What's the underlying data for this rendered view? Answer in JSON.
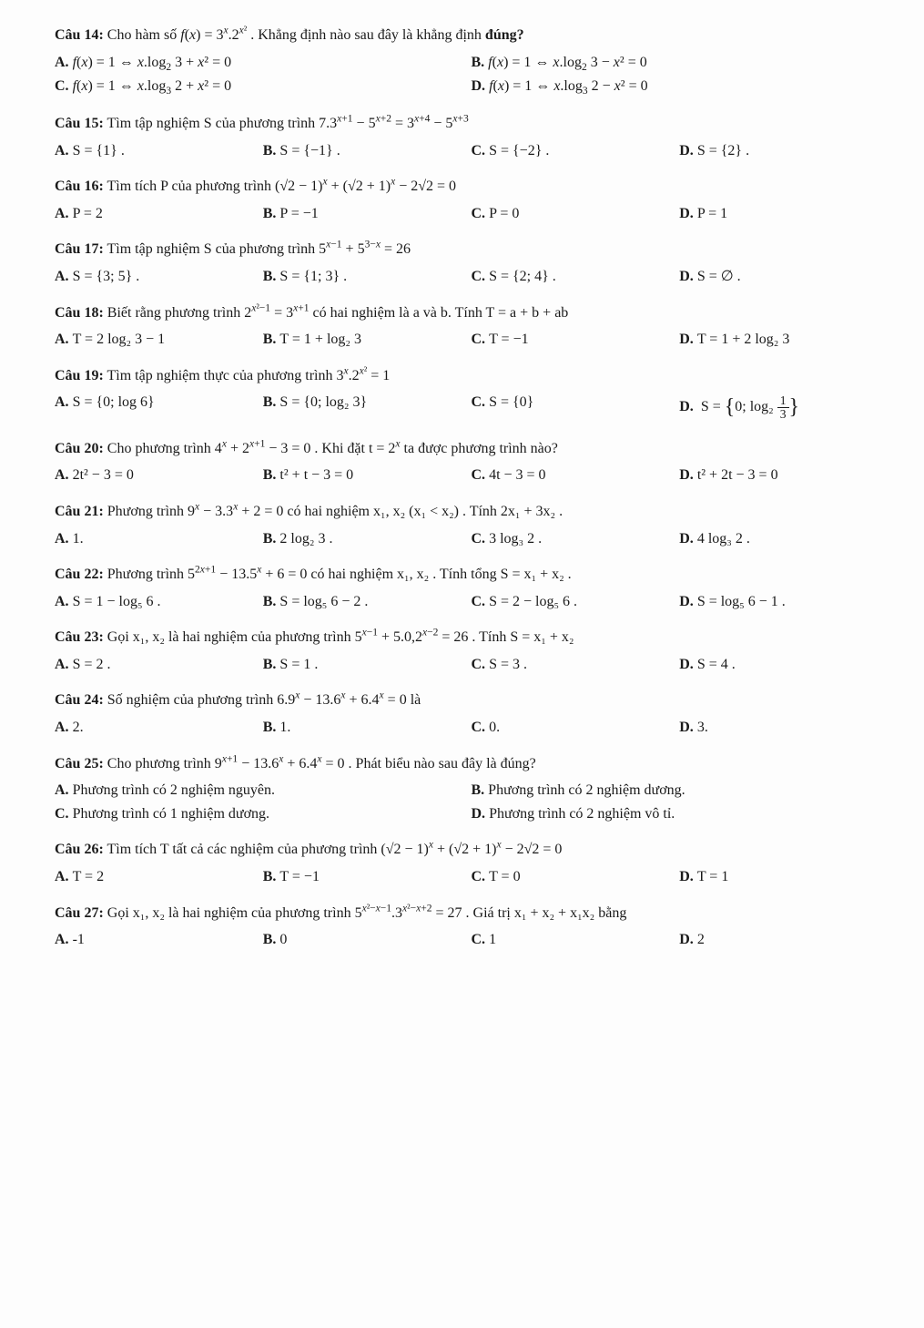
{
  "q14": {
    "num": "Câu 14:",
    "stem_before": " Cho hàm số ",
    "stem_fx": "f(x) = 3",
    "stem_mid": " . Khẳng định nào sau đây là khẳng định ",
    "stem_bold": "đúng?",
    "A": "f(x) = 1 ⇔ x.log₂ 3 + x² = 0",
    "B": "f(x) = 1 ⇔ x.log₂ 3 − x² = 0",
    "C": "f(x) = 1 ⇔ x.log₃ 2 + x² = 0",
    "D": "f(x) = 1 ⇔ x.log₃ 2 − x² = 0"
  },
  "q15": {
    "num": "Câu 15:",
    "stem": " Tìm tập nghiệm S của phương trình  7.3",
    "A": "S = {1} .",
    "B": "S = {−1} .",
    "C": "S = {−2} .",
    "D": "S = {2} ."
  },
  "q16": {
    "num": "Câu 16:",
    "stem": " Tìm tích P của phương trình  (√2 − 1)",
    "stem_tail": " − 2√2 = 0",
    "A": "P = 2",
    "B": "P = −1",
    "C": "P = 0",
    "D": "P = 1"
  },
  "q17": {
    "num": "Câu 17:",
    "stem": " Tìm tập nghiệm S của phương trình  5",
    "stem_tail": " = 26",
    "A": "S = {3; 5} .",
    "B": "S = {1; 3} .",
    "C": "S = {2; 4} .",
    "D": "S = ∅ ."
  },
  "q18": {
    "num": "Câu 18:",
    "stem": " Biết rằng phương trình  2",
    "stem_mid": " = 3",
    "stem_tail": "  có hai nghiệm là a và b. Tính  T = a + b + ab",
    "A": "T = 2 log₂ 3 − 1",
    "B": "T = 1 + log₂ 3",
    "C": "T = −1",
    "D": "T = 1 + 2 log₂ 3"
  },
  "q19": {
    "num": "Câu 19:",
    "stem": " Tìm tập nghiệm thực của phương trình  3",
    "stem_tail": " = 1",
    "A": "S = {0; log 6}",
    "B": "S = {0; log₂ 3}",
    "C": "S = {0}",
    "D_pre": "S = ",
    "D_inside_a": "0; log₂ ",
    "D_frac_n": "1",
    "D_frac_d": "3"
  },
  "q20": {
    "num": "Câu 20:",
    "stem": " Cho phương trình  4",
    "stem_mid": " + 2",
    "stem_tail": " − 3 = 0 . Khi đặt  t = 2",
    "stem_tail2": "  ta được phương trình nào?",
    "A": "2t² − 3 = 0",
    "B": "t² + t − 3 = 0",
    "C": "4t − 3 = 0",
    "D": "t² + 2t − 3 = 0"
  },
  "q21": {
    "num": "Câu 21:",
    "stem": " Phương trình  9",
    "stem_mid": " − 3.3",
    "stem_tail": " + 2 = 0  có hai nghiệm  x₁, x₂  (x₁ < x₂) . Tính  2x₁ + 3x₂ .",
    "A": "1.",
    "B": "2 log₂ 3 .",
    "C": "3 log₃ 2 .",
    "D": "4 log₃ 2 ."
  },
  "q22": {
    "num": "Câu 22:",
    "stem": " Phương trình  5",
    "stem_mid": " − 13.5",
    "stem_tail": " + 6 = 0  có hai nghiệm  x₁, x₂ . Tính tổng  S = x₁ + x₂ .",
    "A": "S = 1 − log₅ 6 .",
    "B": "S = log₅ 6 − 2 .",
    "C": "S = 2 − log₅ 6 .",
    "D": "S = log₅ 6 − 1 ."
  },
  "q23": {
    "num": "Câu 23:",
    "stem": " Gọi  x₁, x₂  là hai nghiệm của phương trình  5",
    "stem_mid": " + 5.0,2",
    "stem_tail": " = 26 . Tính  S = x₁ + x₂",
    "A": "S = 2 .",
    "B": "S = 1 .",
    "C": "S = 3 .",
    "D": "S = 4 ."
  },
  "q24": {
    "num": "Câu 24:",
    "stem": " Số nghiệm của phương trình  6.9",
    "stem_mid1": " − 13.6",
    "stem_mid2": " + 6.4",
    "stem_tail": " = 0  là",
    "A": "2.",
    "B": "1.",
    "C": "0.",
    "D": "3."
  },
  "q25": {
    "num": "Câu 25:",
    "stem": " Cho phương trình  9",
    "stem_mid1": " − 13.6",
    "stem_mid2": " + 6.4",
    "stem_tail": " = 0 . Phát biểu nào sau đây là đúng?",
    "A": "Phương trình có 2 nghiệm nguyên.",
    "B": "Phương trình có 2 nghiệm dương.",
    "C": "Phương trình có 1 nghiệm dương.",
    "D": "Phương trình có 2 nghiệm vô tỉ."
  },
  "q26": {
    "num": "Câu 26:",
    "stem": " Tìm tích  T  tất cả các nghiệm của phương trình  (√2 − 1)",
    "stem_mid": " + (√2 + 1)",
    "stem_tail": " − 2√2 = 0",
    "A": "T = 2",
    "B": "T = −1",
    "C": "T = 0",
    "D": "T = 1"
  },
  "q27": {
    "num": "Câu 27:",
    "stem": " Gọi  x₁, x₂  là hai nghiệm của phương trình  5",
    "stem_mid": ".3",
    "stem_tail": " = 27 . Giá trị  x₁ + x₂ + x₁x₂  bằng",
    "A": "-1",
    "B": "0",
    "C": "1",
    "D": "2"
  },
  "labels": {
    "A": "A.",
    "B": "B.",
    "C": "C.",
    "D": "D."
  }
}
